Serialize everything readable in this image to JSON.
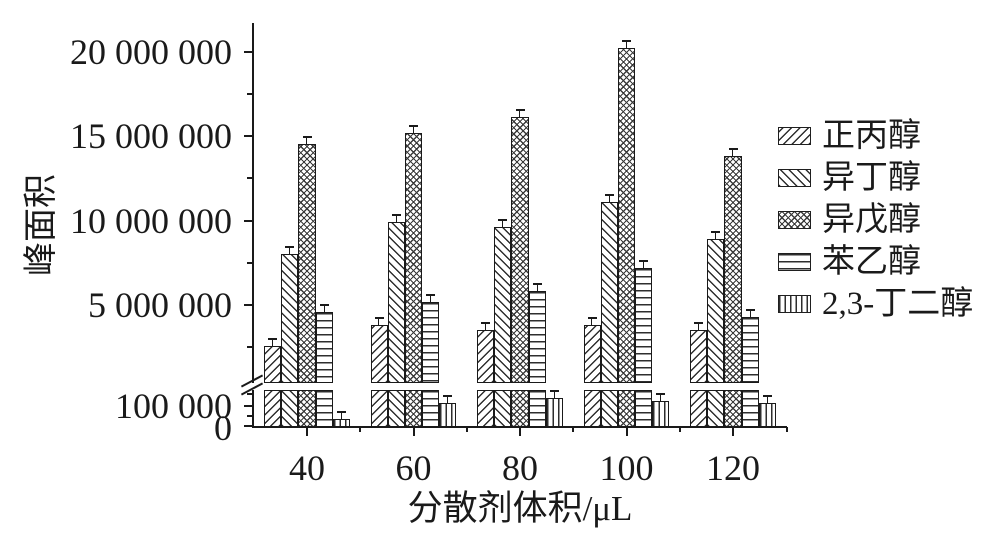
{
  "figure": {
    "background": "#ffffff",
    "axis_color": "#1a1a1a",
    "bar_fill": "#ffffff",
    "bar_line": "#1a1a1a"
  },
  "chart_data": {
    "type": "bar",
    "title": "",
    "xlabel": "分散剂体积/μL",
    "ylabel": "峰面积",
    "categories": [
      "40",
      "60",
      "80",
      "100",
      "120"
    ],
    "series": [
      {
        "name": "正丙醇",
        "pattern": "diagonal-forward",
        "values": [
          2600000,
          3800000,
          3500000,
          3800000,
          3500000
        ]
      },
      {
        "name": "异丁醇",
        "pattern": "diagonal-back",
        "values": [
          8000000,
          9900000,
          9600000,
          11100000,
          8900000
        ]
      },
      {
        "name": "异戊醇",
        "pattern": "crosshatch",
        "values": [
          14500000,
          15200000,
          16100000,
          20200000,
          13800000
        ]
      },
      {
        "name": "苯乙醇",
        "pattern": "horizontal-lines",
        "values": [
          4600000,
          5200000,
          5800000,
          7200000,
          4300000
        ]
      },
      {
        "name": "2,3-丁二醇",
        "pattern": "vertical-lines",
        "values": [
          35000,
          110000,
          130000,
          120000,
          110000
        ]
      }
    ],
    "error_bars": true,
    "grid": false,
    "legend_position": "right",
    "y_axis": {
      "broken": true,
      "upper_ticks": [
        {
          "label": "20 000 000",
          "value": 20000000
        },
        {
          "label": "15 000 000",
          "value": 15000000
        },
        {
          "label": "10 000 000",
          "value": 10000000
        },
        {
          "label": "5 000 000",
          "value": 5000000
        }
      ],
      "upper_minor_tick_values": [
        17500000,
        12500000,
        7500000,
        2500000
      ],
      "lower_ticks": [
        {
          "label": "100 000",
          "value": 100000
        },
        {
          "label": "0",
          "value": 0
        }
      ],
      "lower_minor_tick_values": [
        150000,
        50000
      ],
      "upper_range": [
        0,
        21500000
      ],
      "lower_range": [
        0,
        170000
      ]
    }
  }
}
